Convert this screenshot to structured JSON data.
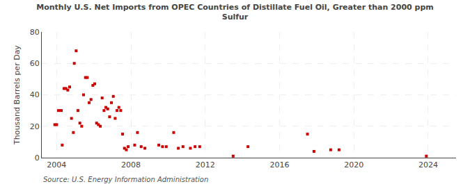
{
  "chart_data": {
    "type": "scatter",
    "title": "Monthly U.S. Net Imports from OPEC Countries of Distillate Fuel Oil, Greater than 2000 ppm\nSulfur",
    "ylabel": "Thousand Barrels per Day",
    "annotations": [
      "Source: U.S. Energy Information Administration"
    ],
    "x": [
      2003.9,
      2004.0,
      2004.1,
      2004.25,
      2004.3,
      2004.4,
      2004.5,
      2004.6,
      2004.7,
      2004.8,
      2004.9,
      2004.95,
      2005.05,
      2005.15,
      2005.25,
      2005.35,
      2005.45,
      2005.55,
      2005.65,
      2005.75,
      2005.85,
      2005.95,
      2006.05,
      2006.15,
      2006.25,
      2006.35,
      2006.45,
      2006.55,
      2006.65,
      2006.75,
      2006.85,
      2006.95,
      2007.05,
      2007.15,
      2007.25,
      2007.35,
      2007.45,
      2007.55,
      2007.65,
      2007.75,
      2007.85,
      2008.2,
      2008.35,
      2008.55,
      2008.75,
      2009.5,
      2009.7,
      2009.9,
      2010.3,
      2010.55,
      2010.8,
      2011.2,
      2011.45,
      2011.7,
      2013.5,
      2014.3,
      2017.5,
      2017.85,
      2018.75,
      2019.2,
      2023.9
    ],
    "values": [
      21,
      21,
      30,
      30,
      8,
      44,
      44,
      43,
      45,
      25,
      16,
      60,
      68,
      30,
      22,
      20,
      40,
      51,
      51,
      35,
      37,
      46,
      47,
      22,
      21,
      20,
      38,
      30,
      32,
      31,
      26,
      35,
      39,
      25,
      30,
      32,
      30,
      15,
      6,
      5,
      7,
      8,
      16,
      7,
      6,
      8,
      7,
      7,
      16,
      6,
      7,
      6,
      7,
      7,
      1,
      7,
      15,
      4,
      5,
      5,
      1
    ],
    "color": "#cc0000",
    "marker": "square",
    "xlim": [
      2003.2,
      2025.5
    ],
    "ylim": [
      0,
      80
    ],
    "xticks": [
      2004,
      2008,
      2012,
      2016,
      2020,
      2024
    ],
    "yticks": [
      0,
      20,
      40,
      60,
      80
    ],
    "grid": true
  }
}
